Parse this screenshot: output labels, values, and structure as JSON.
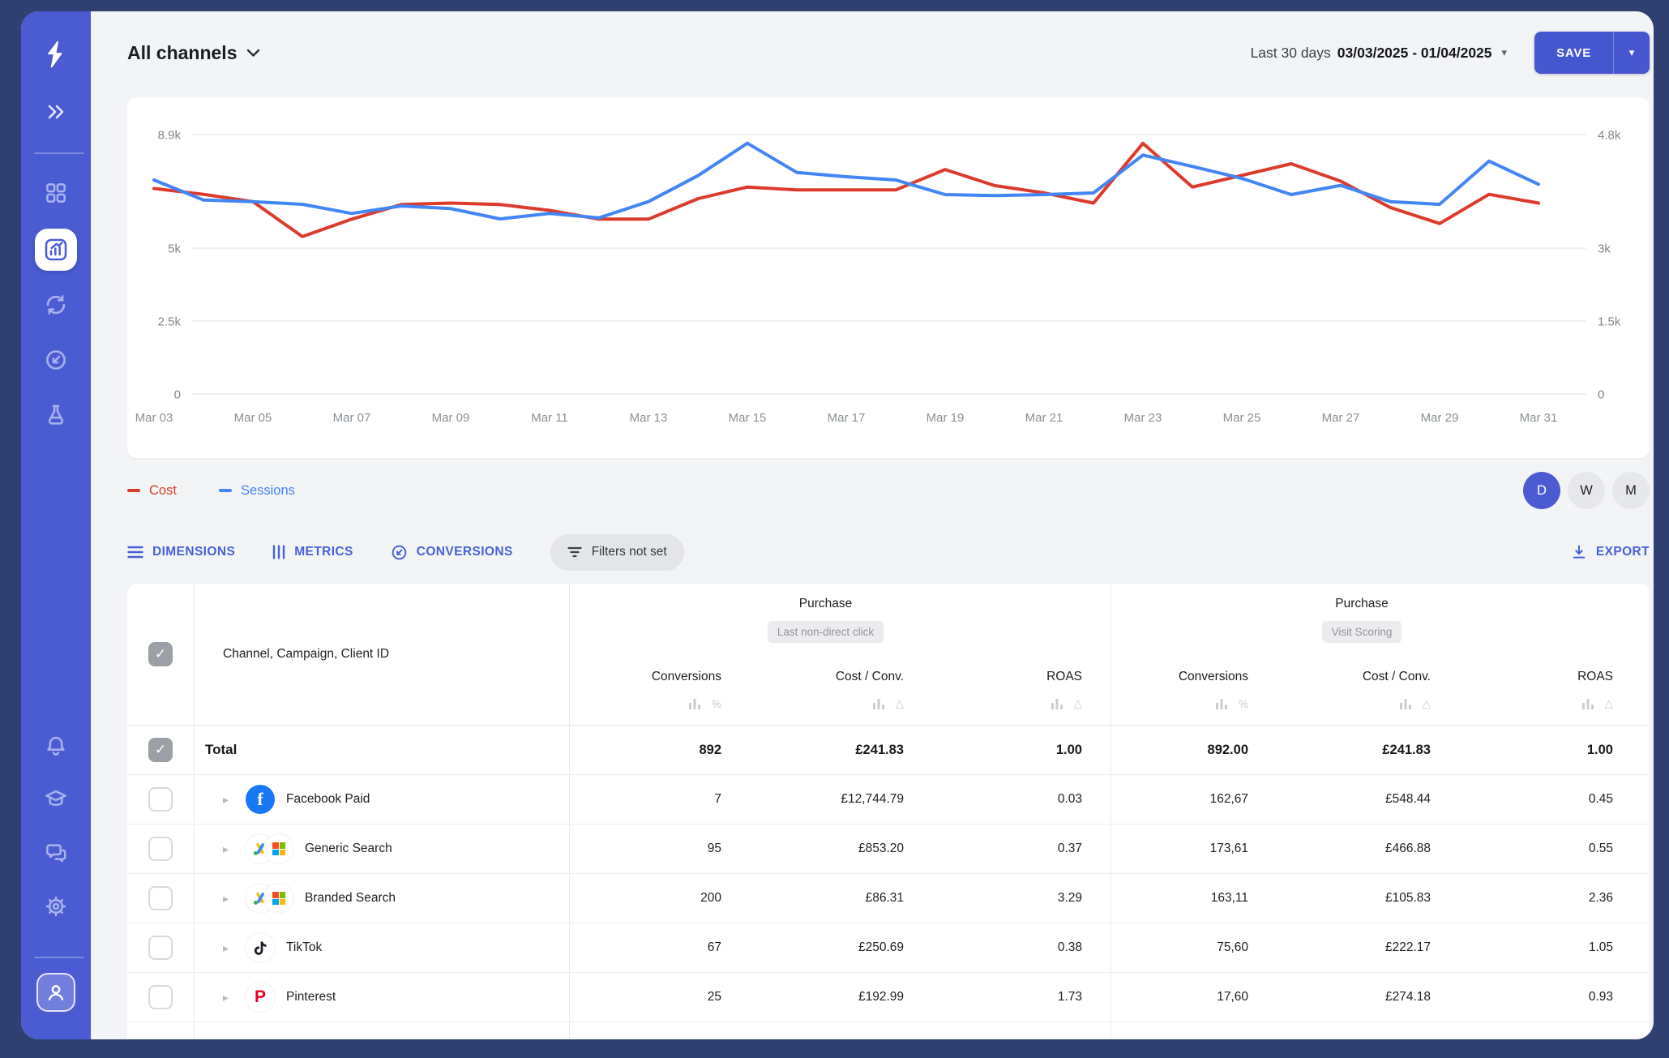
{
  "window": {
    "bg": "#2E4170"
  },
  "sidebar": {
    "bg": "#4B5CD3",
    "icons_top": [
      "logo",
      "collapse",
      "dashboard",
      "analytics",
      "sync",
      "import",
      "experiments"
    ],
    "icons_bottom": [
      "notifications",
      "education",
      "chat",
      "settings",
      "account"
    ]
  },
  "header": {
    "title": "All channels",
    "date_prefix": "Last 30 days",
    "date_range": "03/03/2025 - 01/04/2025",
    "date_caret": "▾",
    "save_label": "SAVE",
    "save_caret": "▾"
  },
  "chart_data": {
    "type": "line",
    "x": [
      "Mar 03",
      "Mar 04",
      "Mar 05",
      "Mar 06",
      "Mar 07",
      "Mar 08",
      "Mar 09",
      "Mar 10",
      "Mar 11",
      "Mar 12",
      "Mar 13",
      "Mar 14",
      "Mar 15",
      "Mar 16",
      "Mar 17",
      "Mar 18",
      "Mar 19",
      "Mar 20",
      "Mar 21",
      "Mar 22",
      "Mar 23",
      "Mar 24",
      "Mar 25",
      "Mar 26",
      "Mar 27",
      "Mar 28",
      "Mar 29",
      "Mar 30",
      "Mar 31"
    ],
    "x_label_every": 2,
    "series": [
      {
        "name": "Cost",
        "color": "#DC3B2B",
        "axis": "left",
        "values": [
          7050,
          6850,
          6600,
          5400,
          6000,
          6500,
          6550,
          6500,
          6300,
          6000,
          6000,
          6700,
          7100,
          7000,
          7000,
          7000,
          7700,
          7150,
          6900,
          6550,
          8600,
          7100,
          7500,
          7900,
          7300,
          6400,
          5850,
          6850,
          6550
        ]
      },
      {
        "name": "Sessions",
        "color": "#4285F4",
        "axis": "right",
        "values": [
          3960,
          3590,
          3560,
          3510,
          3340,
          3480,
          3430,
          3240,
          3340,
          3260,
          3560,
          4040,
          4640,
          4100,
          4020,
          3960,
          3690,
          3670,
          3690,
          3720,
          4420,
          4210,
          3990,
          3690,
          3860,
          3560,
          3510,
          4310,
          3880
        ]
      }
    ],
    "left_axis": {
      "tick_labels": [
        "8.9k",
        "5k",
        "2.5k",
        "0"
      ],
      "tick_values": [
        8900,
        5000,
        2500,
        0
      ],
      "max": 8900
    },
    "right_axis": {
      "tick_labels": [
        "4.8k",
        "3k",
        "1.5k",
        "0"
      ],
      "tick_values": [
        4800,
        3000,
        1500,
        0
      ],
      "max": 4800
    },
    "grid": true,
    "legend_position": "bottom-left",
    "granularity": {
      "options": [
        "D",
        "W",
        "M"
      ],
      "active": "D"
    }
  },
  "toolbar": {
    "buttons": [
      {
        "label": "DIMENSIONS"
      },
      {
        "label": "METRICS"
      },
      {
        "label": "CONVERSIONS"
      }
    ],
    "filters_label": "Filters not set",
    "export_label": "EXPORT"
  },
  "table": {
    "dimension_header": "Channel, Campaign, Client ID",
    "check_glyph": "✓",
    "row_expand_glyph": "▸",
    "header_icons": {
      "conversions_suffix": "%",
      "delta_suffix": "△"
    },
    "groups": [
      {
        "title": "Purchase",
        "model": "Last non-direct click",
        "columns": [
          "Conversions",
          "Cost / Conv.",
          "ROAS"
        ]
      },
      {
        "title": "Purchase",
        "model": "Visit Scoring",
        "columns": [
          "Conversions",
          "Cost / Conv.",
          "ROAS"
        ]
      }
    ],
    "total": {
      "label": "Total",
      "g1": [
        "892",
        "£241.83",
        "1.00"
      ],
      "g2": [
        "892.00",
        "£241.83",
        "1.00"
      ]
    },
    "rows": [
      {
        "name": "Facebook Paid",
        "icon": "facebook",
        "g1": [
          "7",
          "£12,744.79",
          "0.03"
        ],
        "g2": [
          "162,67",
          "£548.44",
          "0.45"
        ]
      },
      {
        "name": "Generic Search",
        "icon": "google-microsoft",
        "g1": [
          "95",
          "£853.20",
          "0.37"
        ],
        "g2": [
          "173,61",
          "£466.88",
          "0.55"
        ]
      },
      {
        "name": "Branded Search",
        "icon": "google-microsoft",
        "g1": [
          "200",
          "£86.31",
          "3.29"
        ],
        "g2": [
          "163,11",
          "£105.83",
          "2.36"
        ]
      },
      {
        "name": "TikTok",
        "icon": "tiktok",
        "g1": [
          "67",
          "£250.69",
          "0.38"
        ],
        "g2": [
          "75,60",
          "£222.17",
          "1.05"
        ]
      },
      {
        "name": "Pinterest",
        "icon": "pinterest",
        "g1": [
          "25",
          "£192.99",
          "1.73"
        ],
        "g2": [
          "17,60",
          "£274.18",
          "0.93"
        ]
      }
    ],
    "channel_icons": {
      "facebook": {
        "glyph": "f",
        "bg": "#1877F2",
        "fg": "#ffffff"
      },
      "tiktok": {
        "fg": "#161823"
      },
      "pinterest": {
        "glyph": "P",
        "fg": "#E60023"
      },
      "microsoft_colors": [
        "#F25022",
        "#7FBA00",
        "#00A4EF",
        "#FFB900"
      ],
      "google_ads_colors": [
        "#FBBC04",
        "#4285F4",
        "#34A853"
      ]
    }
  }
}
